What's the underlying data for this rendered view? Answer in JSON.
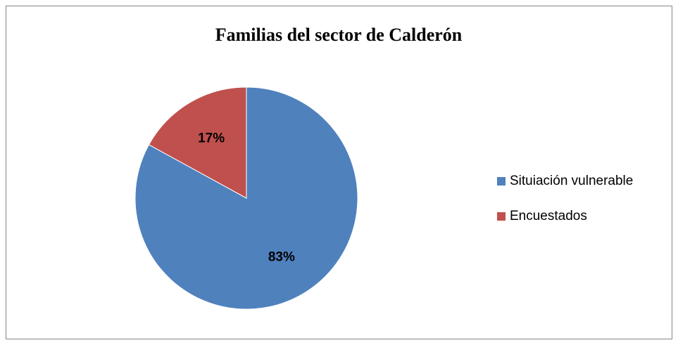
{
  "chart_data": {
    "type": "pie",
    "title": "Familias del sector de Calderón",
    "categories": [
      "Situiación vulnerable",
      "Encuestados"
    ],
    "values": [
      83,
      17
    ],
    "value_labels": [
      "83%",
      "17%"
    ],
    "colors": [
      "#4f81bd",
      "#c0504d"
    ],
    "legend": "right"
  }
}
